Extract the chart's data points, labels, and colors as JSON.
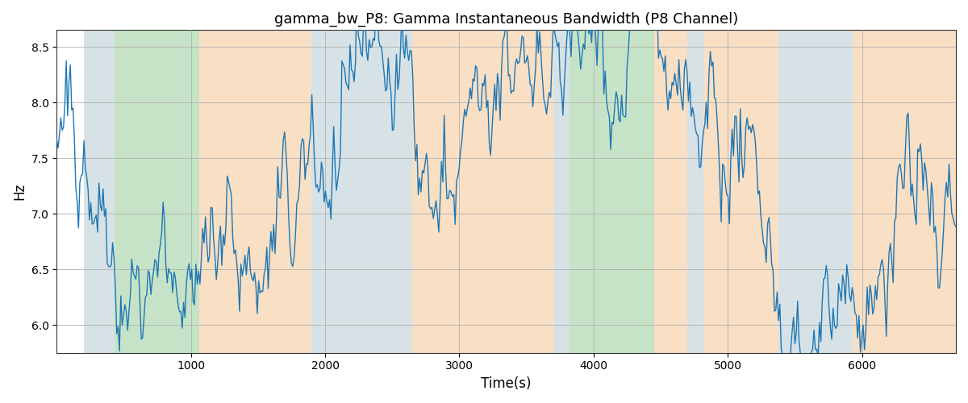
{
  "title": "gamma_bw_P8: Gamma Instantaneous Bandwidth (P8 Channel)",
  "xlabel": "Time(s)",
  "ylabel": "Hz",
  "xlim": [
    0,
    6700
  ],
  "ylim": [
    5.75,
    8.65
  ],
  "yticks": [
    6.0,
    6.5,
    7.0,
    7.5,
    8.0,
    8.5
  ],
  "xticks": [
    1000,
    2000,
    3000,
    4000,
    5000,
    6000
  ],
  "line_color": "#1f77b4",
  "line_width": 1.0,
  "bg_color": "#ffffff",
  "grid_color": "#b0b0b0",
  "title_fontsize": 13,
  "axis_fontsize": 12,
  "colored_bands": [
    {
      "xmin": 200,
      "xmax": 430,
      "color": "#aec6cf",
      "alpha": 0.5
    },
    {
      "xmin": 430,
      "xmax": 1060,
      "color": "#90c990",
      "alpha": 0.5
    },
    {
      "xmin": 1060,
      "xmax": 1900,
      "color": "#f5c08a",
      "alpha": 0.5
    },
    {
      "xmin": 1900,
      "xmax": 2650,
      "color": "#aec6cf",
      "alpha": 0.5
    },
    {
      "xmin": 2650,
      "xmax": 3700,
      "color": "#f5c08a",
      "alpha": 0.5
    },
    {
      "xmin": 3700,
      "xmax": 3820,
      "color": "#aec6cf",
      "alpha": 0.5
    },
    {
      "xmin": 3820,
      "xmax": 4450,
      "color": "#90c990",
      "alpha": 0.5
    },
    {
      "xmin": 4450,
      "xmax": 4700,
      "color": "#f5c08a",
      "alpha": 0.5
    },
    {
      "xmin": 4700,
      "xmax": 4820,
      "color": "#aec6cf",
      "alpha": 0.5
    },
    {
      "xmin": 4820,
      "xmax": 5380,
      "color": "#f5c08a",
      "alpha": 0.5
    },
    {
      "xmin": 5380,
      "xmax": 5930,
      "color": "#aec6cf",
      "alpha": 0.5
    },
    {
      "xmin": 5930,
      "xmax": 6700,
      "color": "#f5c08a",
      "alpha": 0.5
    }
  ],
  "n_points": 660,
  "base_mean": 7.15,
  "autocorr_slow": 0.995,
  "autocorr_fast": 0.85,
  "slow_std": 0.28,
  "fast_std": 0.12,
  "seed": 42
}
